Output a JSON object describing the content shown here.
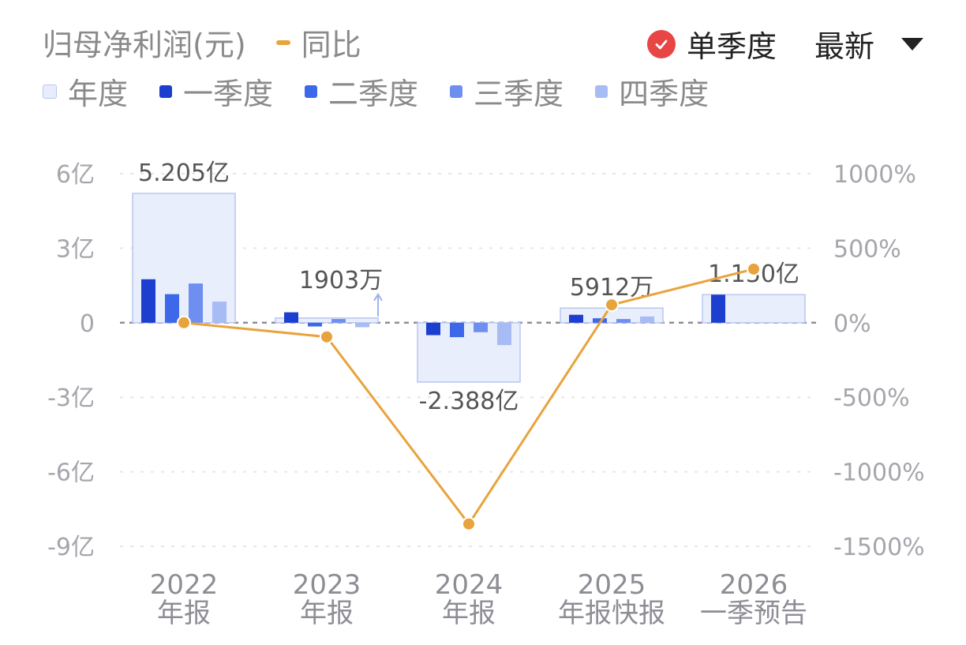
{
  "header": {
    "legend_top": [
      {
        "label": "归母净利润(元)",
        "color": ""
      },
      {
        "label": "同比",
        "color": "#e8a33d"
      }
    ],
    "legend_quarters": [
      {
        "label": "年度",
        "color": "#e8edfb",
        "border": "#b8c6ef"
      },
      {
        "label": "一季度",
        "color": "#1c3fcf"
      },
      {
        "label": "二季度",
        "color": "#3d68ea"
      },
      {
        "label": "三季度",
        "color": "#6f8ff0"
      },
      {
        "label": "四季度",
        "color": "#a7bbf5"
      }
    ],
    "toggle_label": "单季度",
    "sort_label": "最新"
  },
  "chart_data": {
    "type": "bar",
    "unit_left": "亿",
    "left_ticks": [
      "6亿",
      "3亿",
      "0",
      "-3亿",
      "-6亿",
      "-9亿"
    ],
    "left_tick_values": [
      6,
      3,
      0,
      -3,
      -6,
      -9
    ],
    "right_ticks": [
      "1000%",
      "500%",
      "0%",
      "-500%",
      "-1000%",
      "-1500%"
    ],
    "right_tick_values": [
      1000,
      500,
      0,
      -500,
      -1000,
      -1500
    ],
    "ylim_left": [
      -9,
      6
    ],
    "ylim_right": [
      -1500,
      1000
    ],
    "categories": [
      {
        "year": "2022",
        "sub": "年报"
      },
      {
        "year": "2023",
        "sub": "年报"
      },
      {
        "year": "2024",
        "sub": "年报"
      },
      {
        "year": "2025",
        "sub": "年报快报"
      },
      {
        "year": "2026",
        "sub": "一季预告"
      }
    ],
    "annual": {
      "name": "年度",
      "values": [
        5.205,
        0.1903,
        -2.388,
        0.5912,
        1.13
      ],
      "labels": [
        "5.205亿",
        "1903万",
        "-2.388亿",
        "5912万",
        "1.130亿"
      ]
    },
    "quarters": [
      {
        "name": "一季度",
        "values": [
          1.75,
          0.42,
          -0.5,
          0.32,
          1.13
        ]
      },
      {
        "name": "二季度",
        "values": [
          1.15,
          -0.15,
          -0.58,
          0.18,
          null
        ]
      },
      {
        "name": "三季度",
        "values": [
          1.58,
          0.15,
          -0.38,
          0.15,
          null
        ]
      },
      {
        "name": "四季度",
        "values": [
          0.85,
          -0.18,
          -0.9,
          0.25,
          null
        ]
      }
    ],
    "yoy": {
      "name": "同比",
      "values": [
        0,
        -95,
        -1350,
        120,
        360
      ]
    },
    "grid": true
  }
}
